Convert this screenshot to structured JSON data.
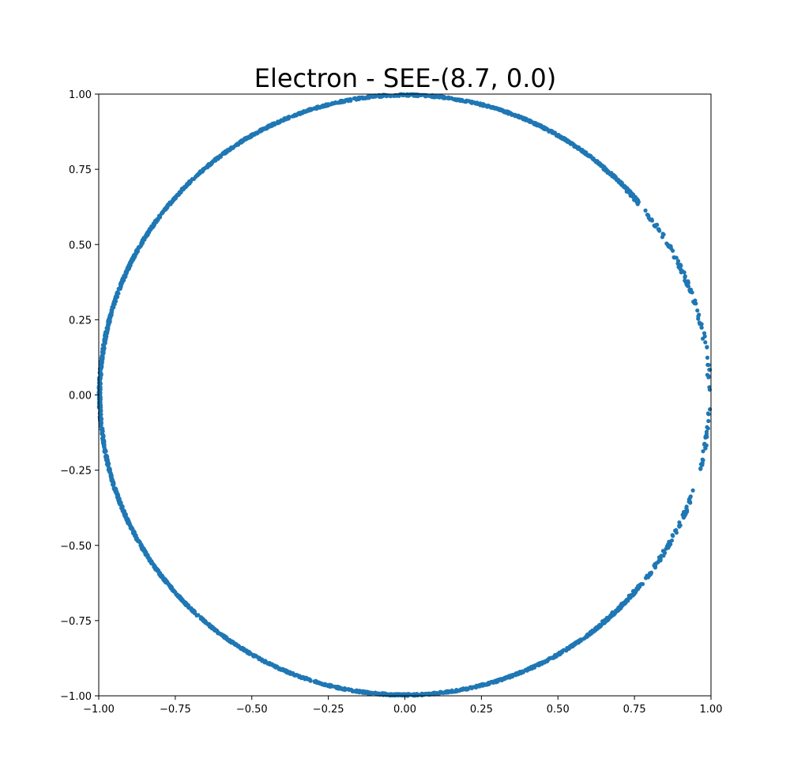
{
  "chart_data": {
    "type": "scatter",
    "title": "Electron - SEE-(8.7, 0.0)",
    "xlabel": "",
    "ylabel": "",
    "xlim": [
      -1.0,
      1.0
    ],
    "ylim": [
      -1.0,
      1.0
    ],
    "grid": false,
    "point_color": "#1f77b4",
    "x_ticks": [
      "−1.00",
      "−0.75",
      "−0.50",
      "−0.25",
      "0.00",
      "0.25",
      "0.50",
      "0.75",
      "1.00"
    ],
    "y_ticks": [
      "−1.00",
      "−0.75",
      "−0.50",
      "−0.25",
      "0.00",
      "0.25",
      "0.50",
      "0.75",
      "1.00"
    ],
    "x_tick_values": [
      -1.0,
      -0.75,
      -0.5,
      -0.25,
      0.0,
      0.25,
      0.5,
      0.75,
      1.0
    ],
    "y_tick_values": [
      -1.0,
      -0.75,
      -0.5,
      -0.25,
      0.0,
      0.25,
      0.5,
      0.75,
      1.0
    ],
    "series": [
      {
        "description_dense_arc_deg": [
          10,
          350
        ],
        "x": [
          0.985,
          0.9397,
          0.866,
          0.766,
          0.6428,
          0.5,
          0.342,
          0.1736,
          0.0,
          -0.1736,
          -0.342,
          -0.5,
          -0.6428,
          -0.766,
          -0.866,
          -0.9397,
          -0.985,
          -1.0,
          -0.985,
          -0.9397,
          -0.866,
          -0.766,
          -0.6428,
          -0.5,
          -0.342,
          -0.1736,
          0.0,
          0.1736,
          0.342,
          0.5,
          0.6428,
          0.766,
          0.866,
          0.9397,
          0.985,
          1.0
        ],
        "y": [
          0.1736,
          0.342,
          0.5,
          0.6428,
          0.766,
          0.866,
          0.9397,
          0.985,
          1.0,
          0.985,
          0.9397,
          0.866,
          0.766,
          0.6428,
          0.5,
          0.342,
          0.1736,
          0.0,
          -0.1736,
          -0.342,
          -0.5,
          -0.6428,
          -0.766,
          -0.866,
          -0.9397,
          -0.985,
          -1.0,
          -0.985,
          -0.9397,
          -0.866,
          -0.766,
          -0.6428,
          -0.5,
          -0.342,
          -0.1736,
          0.0
        ]
      }
    ]
  }
}
